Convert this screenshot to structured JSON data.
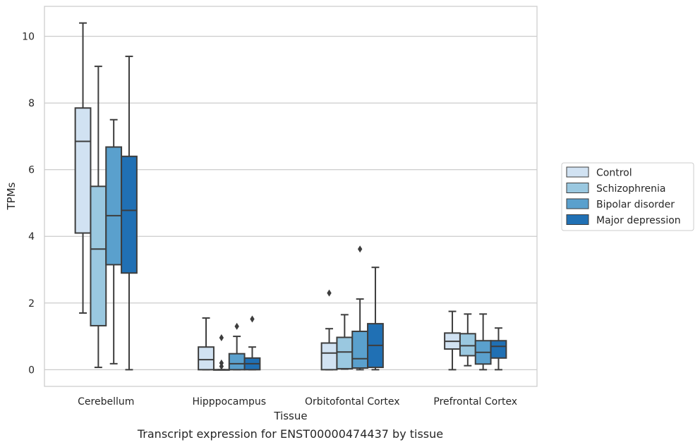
{
  "chart_data": {
    "type": "box",
    "xlabel": "Tissue",
    "ylabel": "TPMs",
    "caption": "Transcript expression for ENST00000474437 by tissue",
    "ylim": [
      -0.5,
      10.9
    ],
    "yticks": [
      0,
      2,
      4,
      6,
      8,
      10
    ],
    "grid": true,
    "legend_position": "right",
    "categories": [
      "Cerebellum",
      "Hipppocampus",
      "Orbitofontal Cortex",
      "Prefrontal Cortex"
    ],
    "series": [
      {
        "name": "Control",
        "color": "#d1e2f2",
        "boxes": [
          {
            "whislo": 1.7,
            "q1": 4.1,
            "med": 6.85,
            "q3": 7.85,
            "whishi": 10.4,
            "fliers": []
          },
          {
            "whislo": 0.0,
            "q1": 0.0,
            "med": 0.3,
            "q3": 0.68,
            "whishi": 1.55,
            "fliers": []
          },
          {
            "whislo": 0.0,
            "q1": 0.0,
            "med": 0.5,
            "q3": 0.8,
            "whishi": 1.23,
            "fliers": [
              2.3
            ]
          },
          {
            "whislo": 0.0,
            "q1": 0.62,
            "med": 0.85,
            "q3": 1.1,
            "whishi": 1.75,
            "fliers": []
          }
        ]
      },
      {
        "name": "Schizophrenia",
        "color": "#9ac8e0",
        "boxes": [
          {
            "whislo": 0.07,
            "q1": 1.32,
            "med": 3.62,
            "q3": 5.5,
            "whishi": 9.1,
            "fliers": []
          },
          {
            "whislo": 0.0,
            "q1": 0.0,
            "med": 0.0,
            "q3": 0.0,
            "whishi": 0.0,
            "fliers": [
              0.2,
              0.1,
              0.96
            ]
          },
          {
            "whislo": 0.02,
            "q1": 0.03,
            "med": 0.53,
            "q3": 0.97,
            "whishi": 1.65,
            "fliers": []
          },
          {
            "whislo": 0.12,
            "q1": 0.42,
            "med": 0.72,
            "q3": 1.08,
            "whishi": 1.67,
            "fliers": []
          }
        ]
      },
      {
        "name": "Bipolar disorder",
        "color": "#5aa0cd",
        "boxes": [
          {
            "whislo": 0.18,
            "q1": 3.15,
            "med": 4.62,
            "q3": 6.68,
            "whishi": 7.5,
            "fliers": []
          },
          {
            "whislo": 0.0,
            "q1": 0.0,
            "med": 0.18,
            "q3": 0.48,
            "whishi": 1.0,
            "fliers": [
              1.3
            ]
          },
          {
            "whislo": 0.0,
            "q1": 0.05,
            "med": 0.33,
            "q3": 1.15,
            "whishi": 2.12,
            "fliers": [
              3.62
            ]
          },
          {
            "whislo": 0.0,
            "q1": 0.17,
            "med": 0.52,
            "q3": 0.87,
            "whishi": 1.67,
            "fliers": []
          }
        ]
      },
      {
        "name": "Major depression",
        "color": "#2070b4",
        "boxes": [
          {
            "whislo": 0.0,
            "q1": 2.9,
            "med": 4.78,
            "q3": 6.4,
            "whishi": 9.4,
            "fliers": []
          },
          {
            "whislo": 0.0,
            "q1": 0.0,
            "med": 0.18,
            "q3": 0.35,
            "whishi": 0.68,
            "fliers": [
              1.52
            ]
          },
          {
            "whislo": 0.0,
            "q1": 0.07,
            "med": 0.73,
            "q3": 1.38,
            "whishi": 3.07,
            "fliers": []
          },
          {
            "whislo": 0.0,
            "q1": 0.35,
            "med": 0.7,
            "q3": 0.87,
            "whishi": 1.25,
            "fliers": []
          }
        ]
      }
    ]
  }
}
